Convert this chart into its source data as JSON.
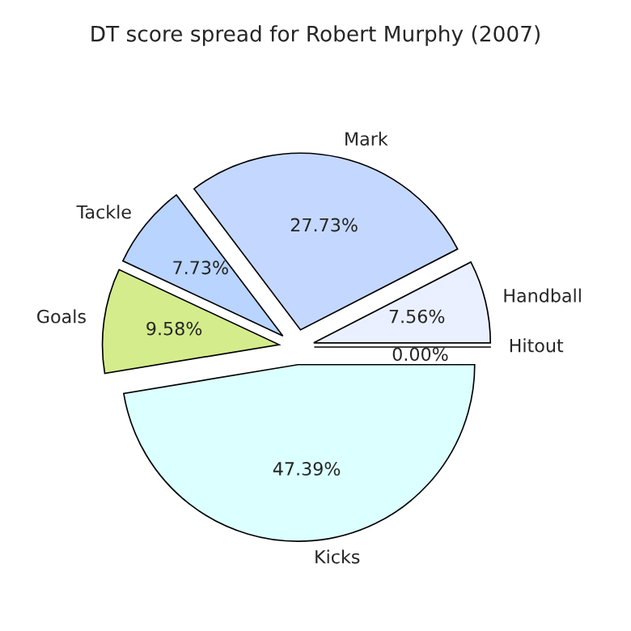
{
  "chart_data": {
    "type": "pie",
    "title": "DT score spread for Robert Murphy (2007)",
    "categories": [
      "Hitout",
      "Handball",
      "Mark",
      "Tackle",
      "Goals",
      "Kicks"
    ],
    "values": [
      0.0,
      7.56,
      27.73,
      7.73,
      9.58,
      47.39
    ],
    "value_labels": [
      "0.00%",
      "7.56%",
      "27.73%",
      "7.73%",
      "9.58%",
      "47.39%"
    ],
    "colors": [
      "#f0f0ff",
      "#eaf0ff",
      "#c4d8ff",
      "#b8d4ff",
      "#d4ec8c",
      "#dcffff"
    ]
  }
}
